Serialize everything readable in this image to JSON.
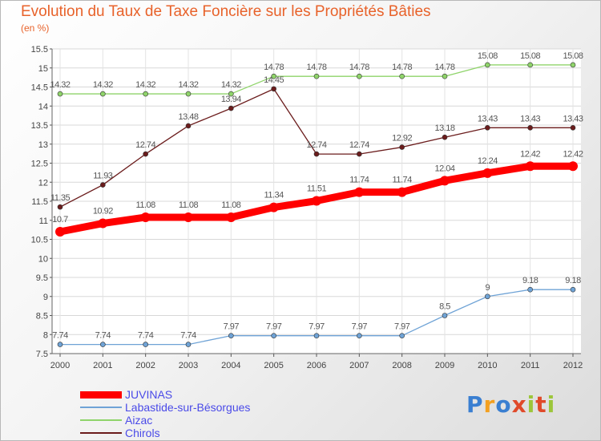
{
  "chart_data": {
    "type": "line",
    "title": "Evolution du Taux de Taxe Foncière sur les Propriétés Bâties",
    "subtitle": "(en %)",
    "xlabel": "",
    "ylabel": "",
    "x": [
      "2000",
      "2001",
      "2002",
      "2003",
      "2004",
      "2005",
      "2006",
      "2007",
      "2008",
      "2009",
      "2010",
      "2011",
      "2012"
    ],
    "ylim": [
      7.5,
      15.5
    ],
    "yticks": [
      "7.5",
      "8",
      "8.5",
      "9",
      "9.5",
      "10",
      "10.5",
      "11",
      "11.5",
      "12",
      "12.5",
      "13",
      "13.5",
      "14",
      "14.5",
      "15",
      "15.5"
    ],
    "grid": true,
    "legend": "bottom-left",
    "series": [
      {
        "name": "JUVINAS",
        "color": "#ff0000",
        "values": [
          10.7,
          10.92,
          11.08,
          11.08,
          11.08,
          11.34,
          11.51,
          11.74,
          11.74,
          12.04,
          12.24,
          12.42,
          12.42
        ],
        "labels": [
          "10.7",
          "10.92",
          "11.08",
          "11.08",
          "11.08",
          "11.34",
          "11.51",
          "11.74",
          "11.74",
          "12.04",
          "12.24",
          "12.42",
          "12.42"
        ]
      },
      {
        "name": "Labastide-sur-Bésorgues",
        "color": "#6fa3d6",
        "values": [
          7.74,
          7.74,
          7.74,
          7.74,
          7.97,
          7.97,
          7.97,
          7.97,
          7.97,
          8.5,
          9,
          9.18,
          9.18
        ],
        "labels": [
          "7.74",
          "7.74",
          "7.74",
          "7.74",
          "7.97",
          "7.97",
          "7.97",
          "7.97",
          "7.97",
          "8.5",
          "9",
          "9.18",
          "9.18"
        ]
      },
      {
        "name": "Aizac",
        "color": "#8fd46a",
        "values": [
          14.32,
          14.32,
          14.32,
          14.32,
          14.32,
          14.78,
          14.78,
          14.78,
          14.78,
          14.78,
          15.08,
          15.08,
          15.08
        ],
        "labels": [
          "14.32",
          "14.32",
          "14.32",
          "14.32",
          "14.32",
          "14.78",
          "14.78",
          "14.78",
          "14.78",
          "14.78",
          "15.08",
          "15.08",
          "15.08"
        ]
      },
      {
        "name": "Chirols",
        "color": "#6b1c1c",
        "values": [
          11.35,
          11.93,
          12.74,
          13.48,
          13.94,
          14.45,
          12.74,
          12.74,
          12.92,
          13.18,
          13.43,
          13.43,
          13.43
        ],
        "labels": [
          "11.35",
          "11.93",
          "12.74",
          "13.48",
          "13.94",
          "14.45",
          "12.74",
          "12.74",
          "12.92",
          "13.18",
          "13.43",
          "13.43",
          "13.43"
        ]
      }
    ]
  },
  "brand": {
    "letters": [
      "P",
      "r",
      "o",
      "x",
      "i",
      "t",
      "i"
    ],
    "colors": [
      "#3a7fd1",
      "#f3a020",
      "#3a7fd1",
      "#e04a2a",
      "#9cc63a",
      "#e04a2a",
      "#9cc63a"
    ]
  }
}
